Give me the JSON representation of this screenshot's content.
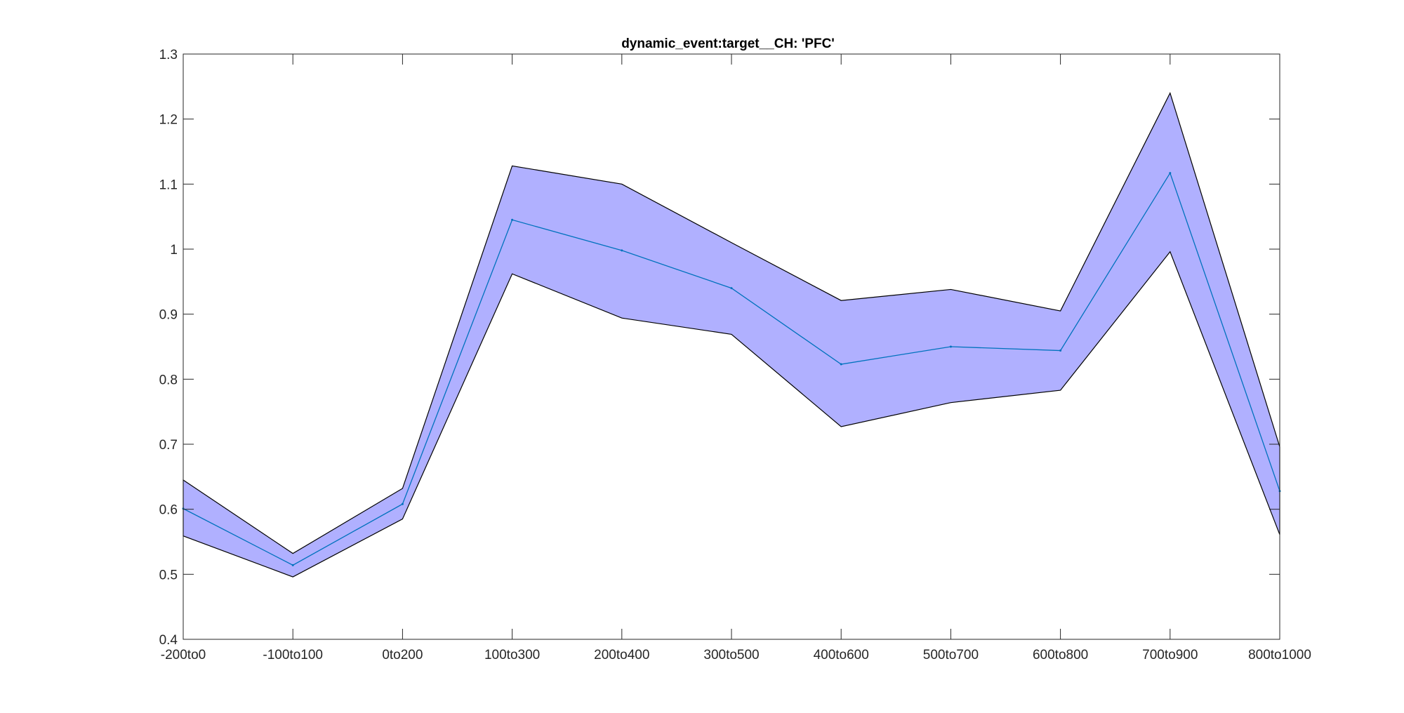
{
  "chart_data": {
    "type": "area",
    "title": "dynamic_event:target__CH: 'PFC'",
    "xlabel": "",
    "ylabel": "",
    "categories": [
      "-200to0",
      "-100to100",
      "0to200",
      "100to300",
      "200to400",
      "300to500",
      "400to600",
      "500to700",
      "600to800",
      "700to900",
      "800to1000"
    ],
    "ylim": [
      0.4,
      1.3
    ],
    "yticks": [
      0.4,
      0.5,
      0.6,
      0.7,
      0.8,
      0.9,
      1,
      1.1,
      1.2,
      1.3
    ],
    "ytick_labels": [
      "0.4",
      "0.5",
      "0.6",
      "0.7",
      "0.8",
      "0.9",
      "1",
      "1.1",
      "1.2",
      "1.3"
    ],
    "grid": false,
    "series": [
      {
        "values": [
          0.601,
          0.514,
          0.608,
          1.045,
          0.998,
          0.94,
          0.823,
          0.85,
          0.844,
          1.117,
          0.628
        ]
      }
    ],
    "band": {
      "upper": [
        0.645,
        0.532,
        0.632,
        1.128,
        1.1,
        1.01,
        0.921,
        0.938,
        0.905,
        1.24,
        0.696
      ],
      "lower": [
        0.559,
        0.496,
        0.585,
        0.962,
        0.894,
        0.869,
        0.727,
        0.764,
        0.783,
        0.996,
        0.561
      ]
    },
    "colors": {
      "band_fill": "#b0b0ff",
      "band_edge": "#000000",
      "mean_line": "#0072bd",
      "axes": "#262626"
    }
  }
}
